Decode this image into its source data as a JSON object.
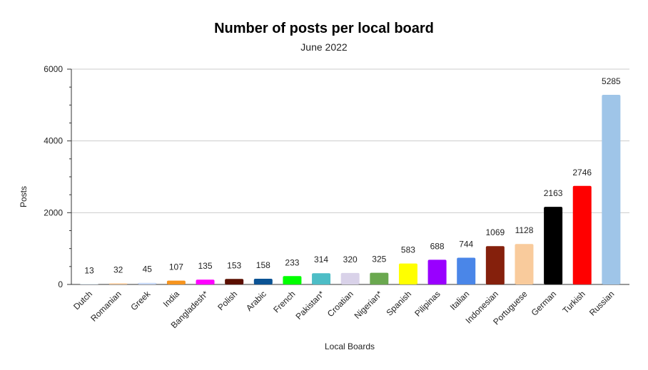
{
  "chart_data": {
    "type": "bar",
    "title": "Number of posts per local board",
    "subtitle": "June 2022",
    "xlabel": "Local Boards",
    "ylabel": "Posts",
    "ylim": [
      0,
      6000
    ],
    "yticks": [
      0,
      2000,
      4000,
      6000
    ],
    "grid": true,
    "legend": "none",
    "categories": [
      "Dutch",
      "Romanian",
      "Greek",
      "India",
      "Bangladesh*",
      "Polish",
      "Arabic",
      "French",
      "Pakistan*",
      "Croatian",
      "Nigerian*",
      "Spanish",
      "Pilipinas",
      "Italian",
      "Indonesian",
      "Portuguese",
      "German",
      "Turkish",
      "Russian"
    ],
    "values": [
      13,
      32,
      45,
      107,
      135,
      153,
      158,
      233,
      314,
      320,
      325,
      583,
      688,
      744,
      1069,
      1128,
      2163,
      2746,
      5285
    ],
    "colors": [
      "#cfe2f3",
      "#f9cb9c",
      "#c9daf8",
      "#f6941e",
      "#ff00ff",
      "#5b0f00",
      "#0b5394",
      "#00ff00",
      "#4dbdc6",
      "#d9d2e9",
      "#6aa84f",
      "#ffff00",
      "#9900ff",
      "#4a86e8",
      "#85200c",
      "#f9cb9c",
      "#000000",
      "#ff0000",
      "#9fc5e8"
    ]
  }
}
